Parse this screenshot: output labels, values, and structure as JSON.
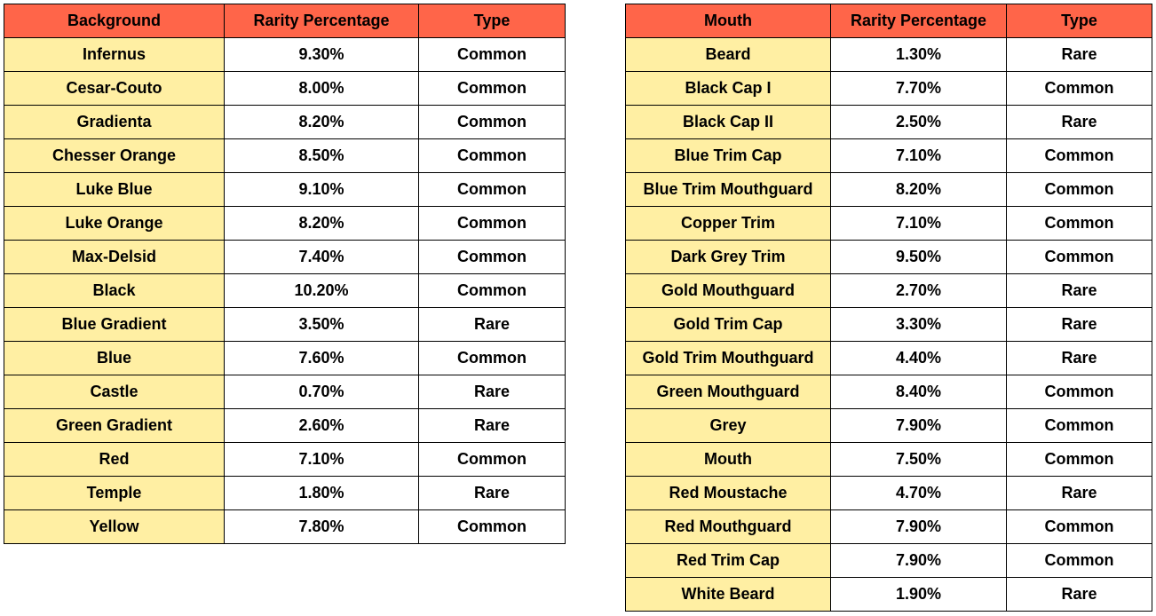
{
  "tables": [
    {
      "headers": [
        "Background",
        "Rarity Percentage",
        "Type"
      ],
      "rows": [
        [
          "Infernus",
          "9.30%",
          "Common"
        ],
        [
          "Cesar-Couto",
          "8.00%",
          "Common"
        ],
        [
          "Gradienta",
          "8.20%",
          "Common"
        ],
        [
          "Chesser Orange",
          "8.50%",
          "Common"
        ],
        [
          "Luke Blue",
          "9.10%",
          "Common"
        ],
        [
          "Luke Orange",
          "8.20%",
          "Common"
        ],
        [
          "Max-Delsid",
          "7.40%",
          "Common"
        ],
        [
          "Black",
          "10.20%",
          "Common"
        ],
        [
          "Blue Gradient",
          "3.50%",
          "Rare"
        ],
        [
          "Blue",
          "7.60%",
          "Common"
        ],
        [
          "Castle",
          "0.70%",
          "Rare"
        ],
        [
          "Green Gradient",
          "2.60%",
          "Rare"
        ],
        [
          "Red",
          "7.10%",
          "Common"
        ],
        [
          "Temple",
          "1.80%",
          "Rare"
        ],
        [
          "Yellow",
          "7.80%",
          "Common"
        ]
      ]
    },
    {
      "headers": [
        "Mouth",
        "Rarity Percentage",
        "Type"
      ],
      "rows": [
        [
          "Beard",
          "1.30%",
          "Rare"
        ],
        [
          "Black Cap I",
          "7.70%",
          "Common"
        ],
        [
          "Black Cap II",
          "2.50%",
          "Rare"
        ],
        [
          "Blue Trim Cap",
          "7.10%",
          "Common"
        ],
        [
          "Blue Trim Mouthguard",
          "8.20%",
          "Common"
        ],
        [
          "Copper Trim",
          "7.10%",
          "Common"
        ],
        [
          "Dark Grey Trim",
          "9.50%",
          "Common"
        ],
        [
          "Gold Mouthguard",
          "2.70%",
          "Rare"
        ],
        [
          "Gold Trim Cap",
          "3.30%",
          "Rare"
        ],
        [
          "Gold Trim Mouthguard",
          "4.40%",
          "Rare"
        ],
        [
          "Green Mouthguard",
          "8.40%",
          "Common"
        ],
        [
          "Grey",
          "7.90%",
          "Common"
        ],
        [
          "Mouth",
          "7.50%",
          "Common"
        ],
        [
          "Red Moustache",
          "4.70%",
          "Rare"
        ],
        [
          "Red Mouthguard",
          "7.90%",
          "Common"
        ],
        [
          "Red Trim Cap",
          "7.90%",
          "Common"
        ],
        [
          "White Beard",
          "1.90%",
          "Rare"
        ]
      ]
    }
  ]
}
